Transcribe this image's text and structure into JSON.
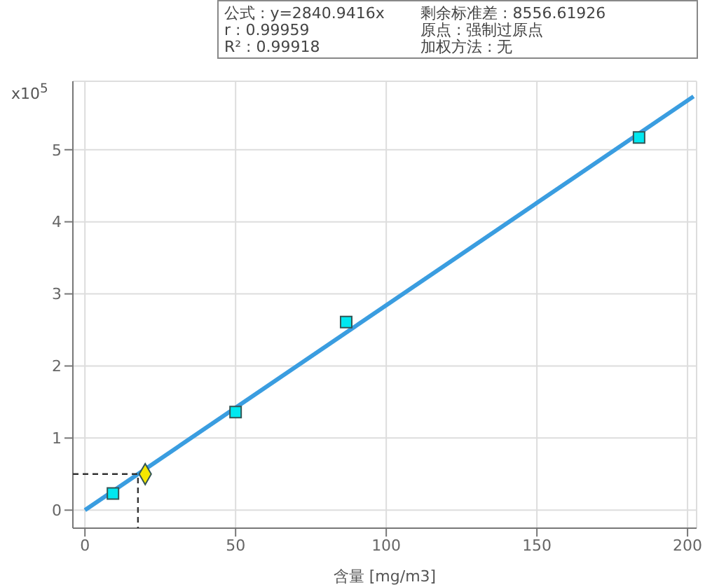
{
  "chart_data": {
    "type": "scatter",
    "xlabel": "含量 [mg/m3]",
    "ylabel": "x10$^{5}$",
    "annotations": [
      "公式 : y=2840.9416x",
      "r : 0.99959",
      "R² : 0.99918",
      "剩余标准差 : 8556.61926",
      "原点 : 强制过原点",
      "加权方法 : 无"
    ],
    "series": [
      {
        "type": "line",
        "color": "#3a9de0",
        "x": [
          0,
          202
        ],
        "values": [
          0,
          5.74
        ],
        "marker": "none",
        "line_style": "solid"
      },
      {
        "type": "line",
        "color": "#333333",
        "x": [
          -4,
          17.6,
          17.6
        ],
        "values": [
          0.5,
          0.5,
          -0.25
        ],
        "marker": "none",
        "line_style": "dashed"
      },
      {
        "type": "scatter",
        "color": "#00e8f0",
        "x": [
          9.3,
          50,
          86.7,
          183.9
        ],
        "values": [
          0.23,
          1.36,
          2.61,
          5.17
        ],
        "marker": "square"
      },
      {
        "type": "scatter",
        "color": "#f5e800",
        "x": [
          20
        ],
        "values": [
          0.5
        ],
        "marker": "diamond"
      }
    ],
    "xlim": [
      -4,
      203
    ],
    "xticks": [
      0,
      50,
      100,
      150,
      200
    ],
    "ylim": [
      -0.25,
      5.95
    ],
    "yticks": [
      0,
      1,
      2,
      3,
      4,
      5
    ],
    "grid": true
  }
}
